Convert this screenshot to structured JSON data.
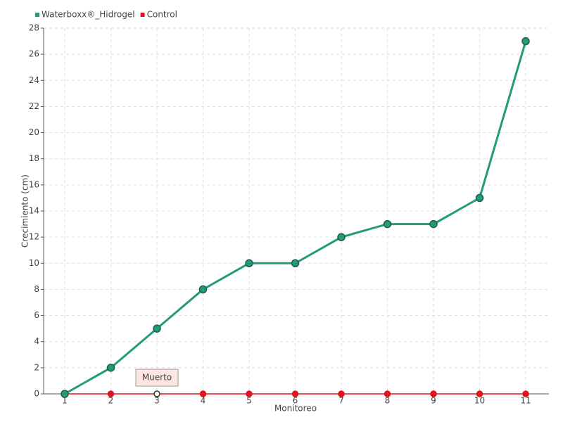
{
  "chart_data": {
    "type": "line",
    "x_label": "Monitoreo",
    "y_label": "Crecimiento (cm)",
    "categories": [
      "1",
      "2",
      "3",
      "4",
      "5",
      "6",
      "7",
      "8",
      "9",
      "10",
      "11"
    ],
    "series": [
      {
        "name": "Waterboxx®_Hidrogel",
        "color": "#229b7c",
        "values": [
          0,
          2,
          5,
          8,
          10,
          10,
          12,
          13,
          13,
          15,
          27
        ]
      },
      {
        "name": "Control",
        "color": "#e0141e",
        "values": [
          0,
          0,
          0,
          0,
          0,
          0,
          0,
          0,
          0,
          0,
          0
        ]
      }
    ],
    "annotations": [
      {
        "text": "Muerto",
        "x": "3",
        "series": "Control"
      }
    ],
    "ylim": [
      0,
      28
    ],
    "yticks": [
      0,
      2,
      4,
      6,
      8,
      10,
      12,
      14,
      16,
      18,
      20,
      22,
      24,
      26,
      28
    ],
    "grid": true,
    "legend": "top-left"
  }
}
